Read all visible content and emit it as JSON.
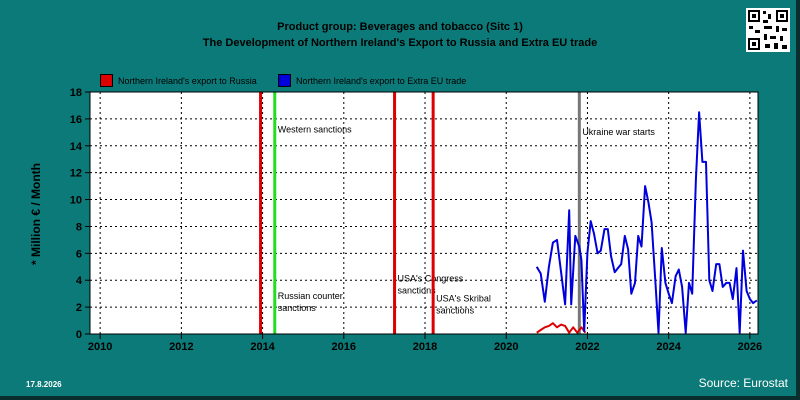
{
  "header": {
    "title_line1": "Product group: Beverages and tobacco (Sitc 1)",
    "title_line2": "The Development of Northern Ireland's Export to  Russia and Extra EU trade"
  },
  "footer": {
    "date": "17.8.2026",
    "source": "Source: Eurostat"
  },
  "qr_icon": "qr-code-icon",
  "colors": {
    "background": "#0c7a78",
    "plot": "#ffffff",
    "russia": "#dd0000",
    "extra_eu": "#0000dd",
    "sanction_line": "#dd0000",
    "western_sanction_line": "#22dd22",
    "war_line": "#777777"
  },
  "chart_data": {
    "type": "line",
    "ylabel": "* Million € / Month",
    "xlim": [
      2009.75,
      2026.2
    ],
    "ylim": [
      0,
      18
    ],
    "x_ticks": [
      2010,
      2012,
      2014,
      2016,
      2018,
      2020,
      2022,
      2024,
      2026
    ],
    "y_ticks": [
      0,
      2,
      4,
      6,
      8,
      10,
      12,
      14,
      16,
      18
    ],
    "grid": true,
    "legend_position": "top-left",
    "series": [
      {
        "name": "Northern Ireland's export to Russia",
        "color": "#dd0000",
        "points": [
          [
            2020.75,
            0.1
          ],
          [
            2020.85,
            0.3
          ],
          [
            2020.95,
            0.5
          ],
          [
            2021.05,
            0.6
          ],
          [
            2021.15,
            0.8
          ],
          [
            2021.25,
            0.5
          ],
          [
            2021.35,
            0.7
          ],
          [
            2021.45,
            0.6
          ],
          [
            2021.55,
            0.1
          ],
          [
            2021.65,
            0.5
          ],
          [
            2021.75,
            0.1
          ],
          [
            2021.85,
            0.5
          ],
          [
            2021.95,
            0.1
          ]
        ]
      },
      {
        "name": "Northern Ireland's export to Extra EU trade",
        "color": "#0000dd",
        "points": [
          [
            2020.75,
            5.0
          ],
          [
            2020.85,
            4.5
          ],
          [
            2020.95,
            2.4
          ],
          [
            2021.05,
            5.0
          ],
          [
            2021.15,
            6.8
          ],
          [
            2021.25,
            7.0
          ],
          [
            2021.35,
            4.6
          ],
          [
            2021.45,
            2.2
          ],
          [
            2021.55,
            9.2
          ],
          [
            2021.6,
            2.2
          ],
          [
            2021.7,
            7.3
          ],
          [
            2021.8,
            6.5
          ],
          [
            2021.85,
            5.5
          ],
          [
            2021.92,
            0.2
          ],
          [
            2022.0,
            6.0
          ],
          [
            2022.08,
            8.4
          ],
          [
            2022.16,
            7.5
          ],
          [
            2022.25,
            6.0
          ],
          [
            2022.33,
            6.2
          ],
          [
            2022.42,
            7.8
          ],
          [
            2022.5,
            7.8
          ],
          [
            2022.58,
            5.8
          ],
          [
            2022.67,
            4.6
          ],
          [
            2022.75,
            4.9
          ],
          [
            2022.83,
            5.2
          ],
          [
            2022.92,
            7.3
          ],
          [
            2023.0,
            6.3
          ],
          [
            2023.08,
            3.0
          ],
          [
            2023.17,
            3.8
          ],
          [
            2023.25,
            7.3
          ],
          [
            2023.33,
            6.5
          ],
          [
            2023.42,
            11.0
          ],
          [
            2023.5,
            9.8
          ],
          [
            2023.58,
            8.3
          ],
          [
            2023.67,
            4.0
          ],
          [
            2023.75,
            0.1
          ],
          [
            2023.83,
            6.4
          ],
          [
            2023.92,
            3.8
          ],
          [
            2024.0,
            3.0
          ],
          [
            2024.08,
            2.3
          ],
          [
            2024.17,
            4.3
          ],
          [
            2024.25,
            4.8
          ],
          [
            2024.33,
            3.5
          ],
          [
            2024.42,
            0.1
          ],
          [
            2024.5,
            3.8
          ],
          [
            2024.58,
            3.0
          ],
          [
            2024.67,
            11.5
          ],
          [
            2024.75,
            16.5
          ],
          [
            2024.83,
            12.8
          ],
          [
            2024.92,
            12.8
          ],
          [
            2025.0,
            4.0
          ],
          [
            2025.08,
            3.2
          ],
          [
            2025.17,
            5.2
          ],
          [
            2025.25,
            5.2
          ],
          [
            2025.33,
            3.5
          ],
          [
            2025.42,
            3.8
          ],
          [
            2025.5,
            3.8
          ],
          [
            2025.58,
            2.6
          ],
          [
            2025.67,
            4.9
          ],
          [
            2025.75,
            0.1
          ],
          [
            2025.83,
            6.2
          ],
          [
            2025.92,
            3.2
          ],
          [
            2026.0,
            2.6
          ],
          [
            2026.08,
            2.3
          ],
          [
            2026.17,
            2.5
          ]
        ]
      }
    ],
    "events": [
      {
        "x": 2013.95,
        "color": "#dd0000",
        "label": "",
        "label_y": null
      },
      {
        "x": 2014.3,
        "color": "#22dd22",
        "label": "Western sanctions",
        "label_y": 15.0
      },
      {
        "x": 2014.3,
        "color": null,
        "label": "Russian counter sanctions",
        "label_y": 2.6
      },
      {
        "x": 2017.25,
        "color": "#dd0000",
        "label": "USA's Congress sanctions",
        "label_y": 3.9
      },
      {
        "x": 2018.2,
        "color": "#dd0000",
        "label": "USA's Skribal sanctions",
        "label_y": 2.4
      },
      {
        "x": 2021.8,
        "color": "#777777",
        "label": "Ukraine war starts",
        "label_y": 14.8
      }
    ]
  }
}
